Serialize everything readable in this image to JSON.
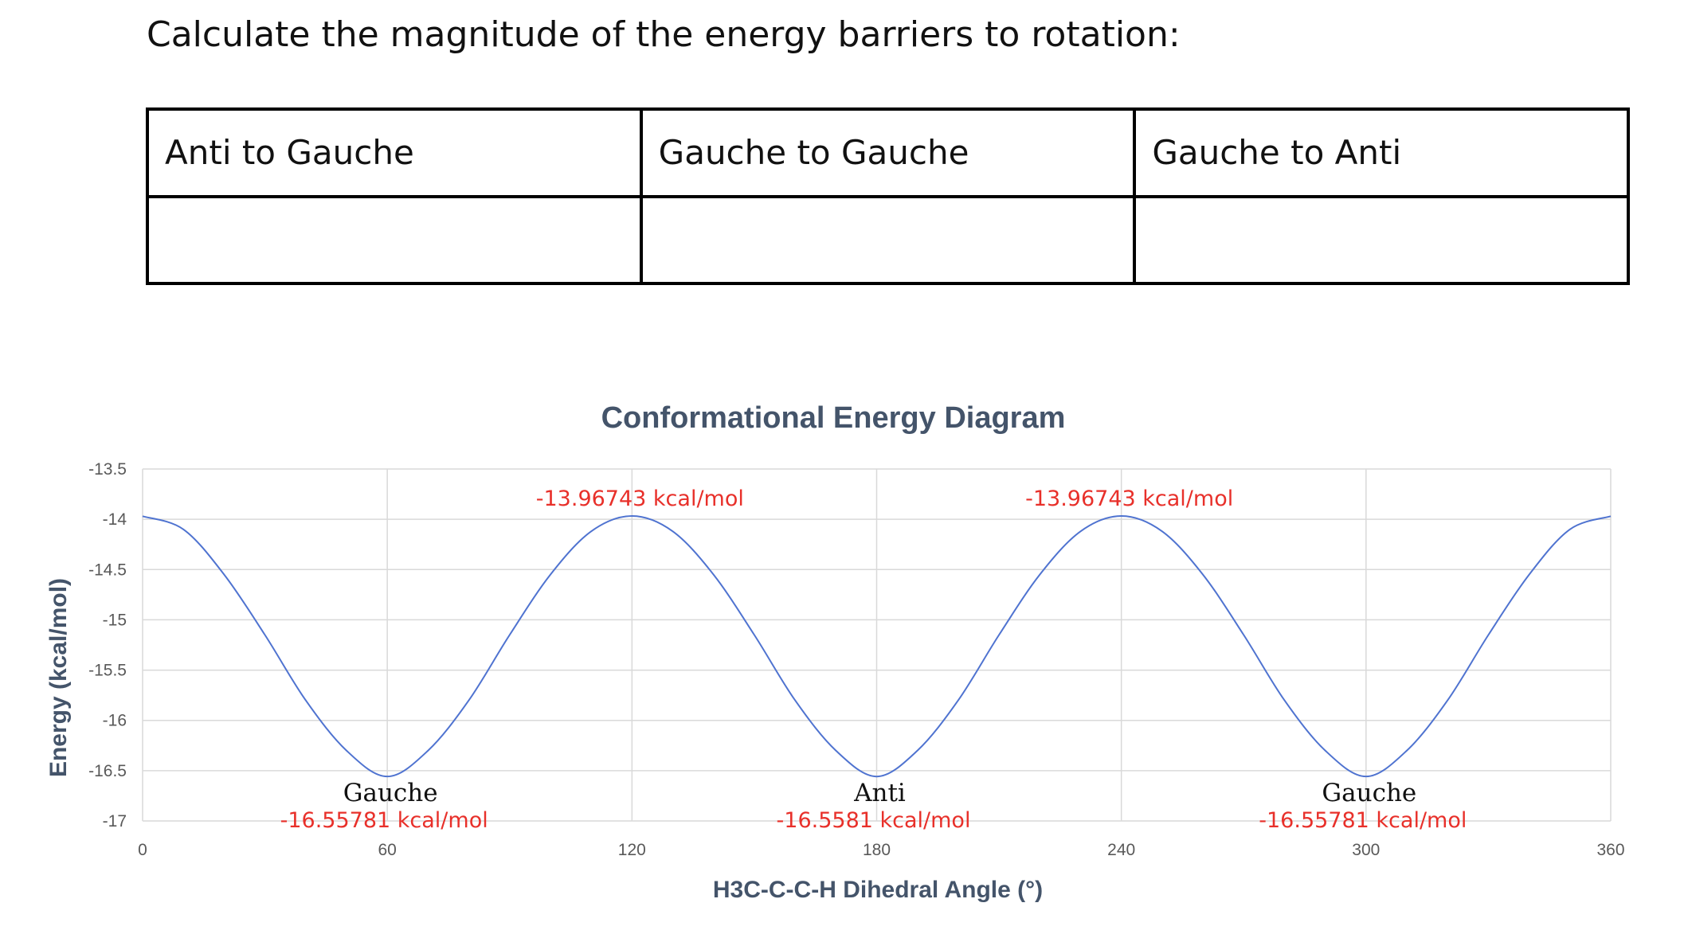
{
  "prompt": "Calculate the magnitude of the energy barriers to rotation:",
  "table": {
    "headers": [
      "Anti to Gauche",
      "Gauche to Gauche",
      "Gauche to Anti"
    ],
    "values": [
      "",
      "",
      ""
    ]
  },
  "colors": {
    "line": "#4f73d0",
    "annotation": "#e8302a",
    "title": "#44546a",
    "grid": "#d9d9d9"
  },
  "chart_data": {
    "type": "line",
    "title": "Conformational Energy Diagram",
    "xlabel": "H3C-C-C-H Dihedral Angle (°)",
    "ylabel": "Energy (kcal/mol)",
    "xlim": [
      0,
      360
    ],
    "ylim": [
      -17,
      -13.5
    ],
    "x_ticks": [
      "0",
      "60",
      "120",
      "180",
      "240",
      "300",
      "360"
    ],
    "y_ticks": [
      "-13.5",
      "-14",
      "-14.5",
      "-15",
      "-15.5",
      "-16",
      "-16.5",
      "-17"
    ],
    "grid": true,
    "series": [
      {
        "x": [
          0,
          10,
          20,
          30,
          40,
          50,
          60,
          70,
          80,
          90,
          100,
          110,
          120,
          130,
          140,
          150,
          160,
          170,
          180,
          190,
          200,
          210,
          220,
          230,
          240,
          250,
          260,
          270,
          280,
          290,
          300,
          310,
          320,
          330,
          340,
          350,
          360
        ],
        "y": [
          -13.97,
          -14.1,
          -14.55,
          -15.15,
          -15.8,
          -16.3,
          -16.55781,
          -16.3,
          -15.8,
          -15.15,
          -14.55,
          -14.12,
          -13.96743,
          -14.12,
          -14.55,
          -15.15,
          -15.8,
          -16.3,
          -16.5581,
          -16.3,
          -15.8,
          -15.15,
          -14.55,
          -14.12,
          -13.96743,
          -14.12,
          -14.55,
          -15.15,
          -15.8,
          -16.3,
          -16.55781,
          -16.3,
          -15.8,
          -15.15,
          -14.55,
          -14.1,
          -13.97
        ]
      }
    ],
    "annotations": [
      {
        "x": 120,
        "y": -13.96743,
        "text": "-13.96743 kcal/mol"
      },
      {
        "x": 240,
        "y": -13.96743,
        "text": "-13.96743 kcal/mol"
      },
      {
        "x": 60,
        "y": -16.55781,
        "label": "Gauche",
        "text": "-16.55781 kcal/mol"
      },
      {
        "x": 180,
        "y": -16.5581,
        "label": "Anti",
        "text": "-16.5581 kcal/mol"
      },
      {
        "x": 300,
        "y": -16.55781,
        "label": "Gauche",
        "text": "-16.55781 kcal/mol"
      }
    ]
  }
}
